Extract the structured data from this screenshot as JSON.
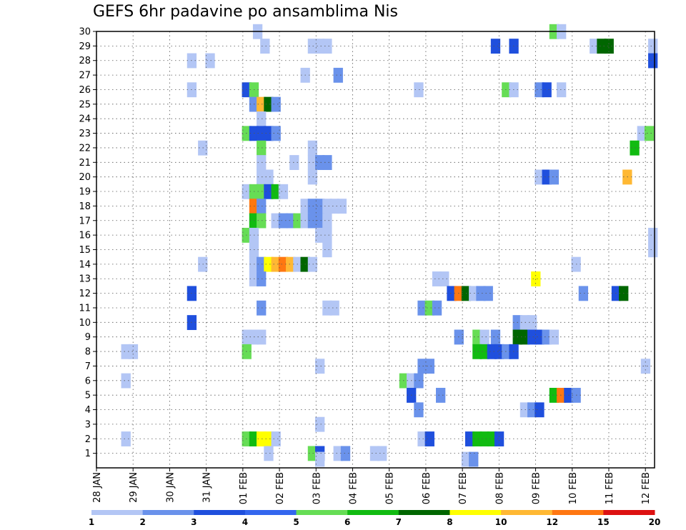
{
  "chart_data": {
    "type": "heatmap",
    "title": "GEFS 6hr padavine po ansamblima Nis",
    "y_ticks": [
      "1",
      "2",
      "3",
      "4",
      "5",
      "6",
      "7",
      "8",
      "9",
      "10",
      "11",
      "12",
      "13",
      "14",
      "15",
      "16",
      "17",
      "18",
      "19",
      "20",
      "21",
      "22",
      "23",
      "24",
      "25",
      "26",
      "27",
      "28",
      "29",
      "30"
    ],
    "x_ticks": [
      "28 JAN",
      "29 JAN",
      "30 JAN",
      "31 JAN",
      "01 FEB",
      "02 FEB",
      "03 FEB",
      "04 FEB",
      "05 FEB",
      "06 FEB",
      "07 FEB",
      "08 FEB",
      "09 FEB",
      "10 FEB",
      "11 FEB",
      "12 FEB"
    ],
    "x_range_days": [
      0,
      15.25
    ],
    "y_range": [
      0,
      30
    ],
    "grid": true,
    "colorbar": {
      "levels": [
        "1",
        "2",
        "3",
        "4",
        "5",
        "6",
        "7",
        "8",
        "10",
        "12",
        "15",
        "20"
      ],
      "colors": [
        "#b3c6f5",
        "#6a92eb",
        "#1f4fdd",
        "#3366ee",
        "#66dd55",
        "#11bb11",
        "#006600",
        "#ffff00",
        "#ffb833",
        "#ff7711",
        "#dd1111",
        "#880000"
      ]
    },
    "cells": [
      [
        4.4,
        30,
        0
      ],
      [
        12.5,
        30,
        4
      ],
      [
        12.7,
        30,
        0
      ],
      [
        4.6,
        29,
        0
      ],
      [
        5.9,
        29,
        0
      ],
      [
        6.1,
        29,
        0
      ],
      [
        6.3,
        29,
        0
      ],
      [
        10.9,
        29,
        2
      ],
      [
        11.4,
        29,
        2
      ],
      [
        13.6,
        29,
        0
      ],
      [
        13.8,
        29,
        6
      ],
      [
        14.0,
        29,
        6
      ],
      [
        15.2,
        29,
        0
      ],
      [
        2.6,
        28,
        0
      ],
      [
        3.1,
        28,
        0
      ],
      [
        15.2,
        28,
        2
      ],
      [
        5.7,
        27,
        0
      ],
      [
        6.6,
        27,
        1
      ],
      [
        2.6,
        26,
        0
      ],
      [
        4.1,
        26,
        2
      ],
      [
        4.3,
        26,
        4
      ],
      [
        8.8,
        26,
        0
      ],
      [
        11.2,
        26,
        4
      ],
      [
        11.4,
        26,
        0
      ],
      [
        12.1,
        26,
        1
      ],
      [
        12.3,
        26,
        2
      ],
      [
        12.7,
        26,
        0
      ],
      [
        4.3,
        25,
        1
      ],
      [
        4.5,
        25,
        8
      ],
      [
        4.7,
        25,
        6
      ],
      [
        4.9,
        25,
        1
      ],
      [
        4.5,
        24,
        0
      ],
      [
        4.1,
        23,
        4
      ],
      [
        4.3,
        23,
        2
      ],
      [
        4.5,
        23,
        2
      ],
      [
        4.7,
        23,
        2
      ],
      [
        4.9,
        23,
        1
      ],
      [
        14.9,
        23,
        0
      ],
      [
        15.1,
        23,
        4
      ],
      [
        2.9,
        22,
        0
      ],
      [
        4.5,
        22,
        4
      ],
      [
        5.9,
        22,
        0
      ],
      [
        14.7,
        22,
        5
      ],
      [
        4.5,
        21,
        0
      ],
      [
        5.4,
        21,
        0
      ],
      [
        5.9,
        21,
        0
      ],
      [
        6.1,
        21,
        1
      ],
      [
        6.3,
        21,
        1
      ],
      [
        4.5,
        20,
        0
      ],
      [
        4.7,
        20,
        0
      ],
      [
        5.9,
        20,
        0
      ],
      [
        12.1,
        20,
        0
      ],
      [
        12.3,
        20,
        2
      ],
      [
        12.5,
        20,
        1
      ],
      [
        14.5,
        20,
        8
      ],
      [
        4.1,
        19,
        0
      ],
      [
        4.3,
        19,
        4
      ],
      [
        4.5,
        19,
        4
      ],
      [
        4.7,
        19,
        2
      ],
      [
        4.9,
        19,
        5
      ],
      [
        5.1,
        19,
        0
      ],
      [
        4.3,
        18,
        9
      ],
      [
        4.5,
        18,
        1
      ],
      [
        5.7,
        18,
        0
      ],
      [
        5.9,
        18,
        1
      ],
      [
        6.1,
        18,
        1
      ],
      [
        6.3,
        18,
        0
      ],
      [
        6.5,
        18,
        0
      ],
      [
        6.7,
        18,
        0
      ],
      [
        4.3,
        17,
        5
      ],
      [
        4.5,
        17,
        4
      ],
      [
        4.9,
        17,
        0
      ],
      [
        5.1,
        17,
        1
      ],
      [
        5.3,
        17,
        1
      ],
      [
        5.5,
        17,
        4
      ],
      [
        5.7,
        17,
        0
      ],
      [
        5.9,
        17,
        1
      ],
      [
        6.1,
        17,
        1
      ],
      [
        6.3,
        17,
        0
      ],
      [
        4.1,
        16,
        4
      ],
      [
        4.3,
        16,
        0
      ],
      [
        6.1,
        16,
        0
      ],
      [
        6.3,
        16,
        0
      ],
      [
        15.2,
        16,
        0
      ],
      [
        4.3,
        15,
        0
      ],
      [
        6.3,
        15,
        0
      ],
      [
        15.2,
        15,
        0
      ],
      [
        2.9,
        14,
        0
      ],
      [
        4.3,
        14,
        0
      ],
      [
        4.5,
        14,
        1
      ],
      [
        4.7,
        14,
        7
      ],
      [
        4.9,
        14,
        8
      ],
      [
        5.1,
        14,
        9
      ],
      [
        5.3,
        14,
        8
      ],
      [
        5.5,
        14,
        0
      ],
      [
        5.7,
        14,
        6
      ],
      [
        5.9,
        14,
        0
      ],
      [
        13.1,
        14,
        0
      ],
      [
        4.3,
        13,
        0
      ],
      [
        4.5,
        13,
        1
      ],
      [
        9.3,
        13,
        0
      ],
      [
        9.5,
        13,
        0
      ],
      [
        12.0,
        13,
        7
      ],
      [
        2.6,
        12,
        2
      ],
      [
        9.7,
        12,
        2
      ],
      [
        9.9,
        12,
        9
      ],
      [
        10.1,
        12,
        6
      ],
      [
        10.3,
        12,
        0
      ],
      [
        10.5,
        12,
        1
      ],
      [
        10.7,
        12,
        1
      ],
      [
        13.3,
        12,
        1
      ],
      [
        14.2,
        12,
        2
      ],
      [
        14.4,
        12,
        6
      ],
      [
        4.5,
        11,
        1
      ],
      [
        6.3,
        11,
        0
      ],
      [
        6.5,
        11,
        0
      ],
      [
        8.9,
        11,
        1
      ],
      [
        9.1,
        11,
        4
      ],
      [
        9.3,
        11,
        1
      ],
      [
        2.6,
        10,
        2
      ],
      [
        11.5,
        10,
        1
      ],
      [
        11.7,
        10,
        0
      ],
      [
        11.9,
        10,
        0
      ],
      [
        11.7,
        9.5,
        0
      ],
      [
        11.9,
        9.5,
        0
      ],
      [
        4.1,
        9,
        0
      ],
      [
        4.3,
        9,
        0
      ],
      [
        4.5,
        9,
        0
      ],
      [
        9.9,
        9,
        1
      ],
      [
        10.4,
        9,
        4
      ],
      [
        10.6,
        9,
        0
      ],
      [
        10.9,
        9,
        1
      ],
      [
        11.5,
        9,
        6
      ],
      [
        11.7,
        9,
        6
      ],
      [
        11.9,
        9,
        2
      ],
      [
        12.1,
        9,
        2
      ],
      [
        12.3,
        9,
        1
      ],
      [
        12.5,
        9,
        0
      ],
      [
        0.8,
        8,
        0
      ],
      [
        1.0,
        8,
        0
      ],
      [
        4.1,
        8,
        4
      ],
      [
        10.4,
        8,
        5
      ],
      [
        10.6,
        8,
        5
      ],
      [
        10.8,
        8,
        2
      ],
      [
        11.0,
        8,
        2
      ],
      [
        11.2,
        8,
        1
      ],
      [
        11.4,
        8,
        2
      ],
      [
        6.1,
        7,
        0
      ],
      [
        8.9,
        7,
        1
      ],
      [
        9.1,
        7,
        1
      ],
      [
        15.0,
        7,
        0
      ],
      [
        0.8,
        6,
        0
      ],
      [
        8.4,
        6,
        4
      ],
      [
        8.6,
        6,
        0
      ],
      [
        8.8,
        6,
        1
      ],
      [
        8.6,
        5,
        2
      ],
      [
        9.4,
        5,
        1
      ],
      [
        12.5,
        5,
        5
      ],
      [
        12.7,
        5,
        9
      ],
      [
        12.9,
        5,
        2
      ],
      [
        13.1,
        5,
        1
      ],
      [
        8.8,
        4,
        1
      ],
      [
        11.7,
        4,
        0
      ],
      [
        11.9,
        4,
        1
      ],
      [
        12.1,
        4,
        2
      ],
      [
        6.1,
        3,
        0
      ],
      [
        0.8,
        2,
        0
      ],
      [
        4.1,
        2,
        4
      ],
      [
        4.3,
        2,
        5
      ],
      [
        4.5,
        2,
        7
      ],
      [
        4.7,
        2,
        7
      ],
      [
        4.9,
        2,
        0
      ],
      [
        8.9,
        2,
        0
      ],
      [
        9.1,
        2,
        2
      ],
      [
        10.2,
        2,
        2
      ],
      [
        10.4,
        2,
        5
      ],
      [
        10.6,
        2,
        5
      ],
      [
        10.8,
        2,
        5
      ],
      [
        11.0,
        2,
        2
      ],
      [
        4.7,
        1,
        0
      ],
      [
        5.9,
        1,
        4
      ],
      [
        6.1,
        1,
        2
      ],
      [
        6.6,
        1,
        0
      ],
      [
        6.8,
        1,
        1
      ],
      [
        7.6,
        1,
        0
      ],
      [
        7.8,
        1,
        0
      ],
      [
        6.1,
        0.6,
        0
      ],
      [
        10.1,
        0.6,
        0
      ],
      [
        10.3,
        0.6,
        1
      ]
    ]
  }
}
